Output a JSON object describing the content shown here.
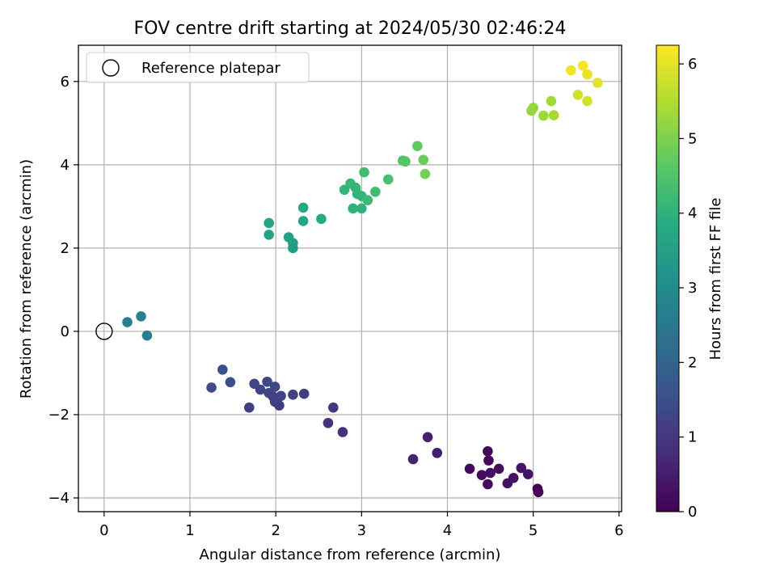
{
  "chart_data": {
    "type": "scatter",
    "title": "FOV centre drift starting at 2024/05/30 02:46:24",
    "xlabel": "Angular distance from reference (arcmin)",
    "ylabel": "Rotation from reference (arcmin)",
    "xlim": [
      -0.3,
      6.03
    ],
    "ylim": [
      -4.33,
      6.87
    ],
    "xticks": [
      0,
      1,
      2,
      3,
      4,
      5,
      6
    ],
    "yticks": [
      -4,
      -2,
      0,
      2,
      4,
      6
    ],
    "xtick_labels": [
      "0",
      "1",
      "2",
      "3",
      "4",
      "5",
      "6"
    ],
    "ytick_labels": [
      "−4",
      "−2",
      "0",
      "2",
      "4",
      "6"
    ],
    "grid": true,
    "legend": {
      "placement": "top-left",
      "entries": [
        {
          "label": "Reference platepar",
          "marker": "open-circle",
          "color": "#000000"
        }
      ]
    },
    "reference_point": {
      "x": 0,
      "y": 0
    },
    "colorbar": {
      "label": "Hours from first FF file",
      "range": [
        0,
        6.25
      ],
      "ticks": [
        0,
        1,
        2,
        3,
        4,
        5,
        6
      ],
      "tick_labels": [
        "0",
        "1",
        "2",
        "3",
        "4",
        "5",
        "6"
      ],
      "colormap": "viridis"
    },
    "points": [
      {
        "x": 4.47,
        "y": -2.88,
        "t": 0.1
      },
      {
        "x": 4.48,
        "y": -3.1,
        "t": 0.12
      },
      {
        "x": 4.26,
        "y": -3.3,
        "t": 0.15
      },
      {
        "x": 4.4,
        "y": -3.45,
        "t": 0.2
      },
      {
        "x": 4.5,
        "y": -3.4,
        "t": 0.22
      },
      {
        "x": 4.6,
        "y": -3.3,
        "t": 0.25
      },
      {
        "x": 4.47,
        "y": -3.67,
        "t": 0.18
      },
      {
        "x": 4.7,
        "y": -3.65,
        "t": 0.28
      },
      {
        "x": 4.77,
        "y": -3.52,
        "t": 0.3
      },
      {
        "x": 4.86,
        "y": -3.28,
        "t": 0.33
      },
      {
        "x": 4.94,
        "y": -3.43,
        "t": 0.35
      },
      {
        "x": 5.05,
        "y": -3.78,
        "t": 0.05
      },
      {
        "x": 5.06,
        "y": -3.86,
        "t": 0.08
      },
      {
        "x": 3.77,
        "y": -2.54,
        "t": 0.55
      },
      {
        "x": 3.88,
        "y": -2.92,
        "t": 0.5
      },
      {
        "x": 3.6,
        "y": -3.07,
        "t": 0.58
      },
      {
        "x": 2.67,
        "y": -1.83,
        "t": 1.0
      },
      {
        "x": 2.61,
        "y": -2.2,
        "t": 0.9
      },
      {
        "x": 2.78,
        "y": -2.42,
        "t": 0.85
      },
      {
        "x": 1.69,
        "y": -1.83,
        "t": 1.15
      },
      {
        "x": 1.75,
        "y": -1.26,
        "t": 1.3
      },
      {
        "x": 1.82,
        "y": -1.4,
        "t": 1.25
      },
      {
        "x": 1.9,
        "y": -1.21,
        "t": 1.35
      },
      {
        "x": 1.92,
        "y": -1.48,
        "t": 1.28
      },
      {
        "x": 1.97,
        "y": -1.57,
        "t": 1.22
      },
      {
        "x": 1.99,
        "y": -1.33,
        "t": 1.32
      },
      {
        "x": 1.99,
        "y": -1.69,
        "t": 1.18
      },
      {
        "x": 2.04,
        "y": -1.78,
        "t": 1.12
      },
      {
        "x": 2.06,
        "y": -1.55,
        "t": 1.24
      },
      {
        "x": 2.2,
        "y": -1.52,
        "t": 1.2
      },
      {
        "x": 2.33,
        "y": -1.5,
        "t": 1.16
      },
      {
        "x": 1.38,
        "y": -0.92,
        "t": 1.55
      },
      {
        "x": 1.47,
        "y": -1.22,
        "t": 1.5
      },
      {
        "x": 1.25,
        "y": -1.35,
        "t": 1.45
      },
      {
        "x": 0.27,
        "y": 0.22,
        "t": 2.7
      },
      {
        "x": 0.43,
        "y": 0.36,
        "t": 2.75
      },
      {
        "x": 0.5,
        "y": -0.1,
        "t": 2.65
      },
      {
        "x": 1.92,
        "y": 2.6,
        "t": 3.65
      },
      {
        "x": 1.92,
        "y": 2.32,
        "t": 3.6
      },
      {
        "x": 2.15,
        "y": 2.26,
        "t": 3.55
      },
      {
        "x": 2.2,
        "y": 2.12,
        "t": 3.5
      },
      {
        "x": 2.2,
        "y": 2.0,
        "t": 3.45
      },
      {
        "x": 2.32,
        "y": 2.97,
        "t": 3.75
      },
      {
        "x": 2.32,
        "y": 2.65,
        "t": 3.7
      },
      {
        "x": 2.53,
        "y": 2.7,
        "t": 3.8
      },
      {
        "x": 2.8,
        "y": 3.4,
        "t": 4.1
      },
      {
        "x": 2.87,
        "y": 3.55,
        "t": 4.15
      },
      {
        "x": 2.93,
        "y": 3.45,
        "t": 4.12
      },
      {
        "x": 2.95,
        "y": 3.3,
        "t": 4.05
      },
      {
        "x": 3.0,
        "y": 3.25,
        "t": 4.08
      },
      {
        "x": 2.9,
        "y": 2.95,
        "t": 4.0
      },
      {
        "x": 3.0,
        "y": 2.95,
        "t": 4.02
      },
      {
        "x": 3.07,
        "y": 3.15,
        "t": 4.2
      },
      {
        "x": 3.03,
        "y": 3.82,
        "t": 4.3
      },
      {
        "x": 3.16,
        "y": 3.35,
        "t": 4.25
      },
      {
        "x": 3.31,
        "y": 3.65,
        "t": 4.4
      },
      {
        "x": 3.48,
        "y": 4.1,
        "t": 4.5
      },
      {
        "x": 3.51,
        "y": 4.08,
        "t": 4.55
      },
      {
        "x": 3.65,
        "y": 4.45,
        "t": 4.7
      },
      {
        "x": 3.72,
        "y": 4.12,
        "t": 4.8
      },
      {
        "x": 3.74,
        "y": 3.78,
        "t": 4.9
      },
      {
        "x": 4.98,
        "y": 5.3,
        "t": 5.2
      },
      {
        "x": 5.0,
        "y": 5.37,
        "t": 5.25
      },
      {
        "x": 5.12,
        "y": 5.18,
        "t": 5.3
      },
      {
        "x": 5.21,
        "y": 5.53,
        "t": 5.35
      },
      {
        "x": 5.24,
        "y": 5.19,
        "t": 5.4
      },
      {
        "x": 5.44,
        "y": 6.27,
        "t": 6.1
      },
      {
        "x": 5.52,
        "y": 5.68,
        "t": 5.8
      },
      {
        "x": 5.58,
        "y": 6.38,
        "t": 6.15
      },
      {
        "x": 5.63,
        "y": 6.17,
        "t": 6.05
      },
      {
        "x": 5.63,
        "y": 5.53,
        "t": 5.85
      },
      {
        "x": 5.75,
        "y": 5.97,
        "t": 6.0
      }
    ]
  }
}
